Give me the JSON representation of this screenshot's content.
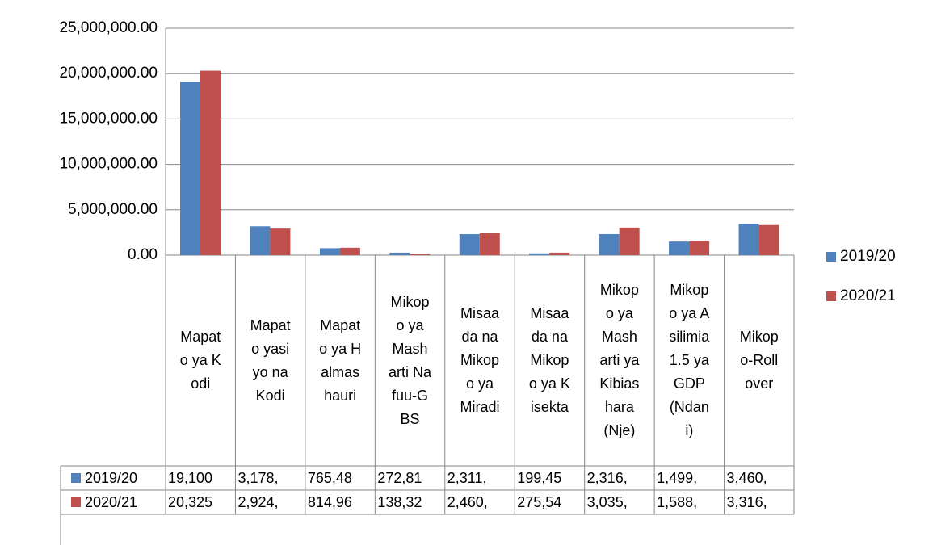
{
  "chart_data": {
    "type": "bar",
    "categories": [
      "Mapato ya Kodi",
      "Mapato yasiyo na Kodi",
      "Mapato ya Halmashauri",
      "Mikopo ya Masharti Nafuu-GBS",
      "Misaada na Mikopo ya Miradi",
      "Misaada na Mikopo ya Kisekta",
      "Mikopo ya Masharti ya Kibiashara (Nje)",
      "Mikopo ya Asilimia 1.5 ya GDP (Ndani)",
      "Mikopo-Rollover"
    ],
    "series": [
      {
        "name": "2019/20",
        "color": "#4f81bd",
        "values": [
          19100000,
          3178000,
          765480,
          272810,
          2311000,
          199450,
          2316000,
          1499000,
          3460000
        ],
        "value_labels": [
          "19,100",
          "3,178,",
          "765,48",
          "272,81",
          "2,311,",
          "199,45",
          "2,316,",
          "1,499,",
          "3,460,"
        ]
      },
      {
        "name": "2020/21",
        "color": "#c0504d",
        "values": [
          20325000,
          2924000,
          814960,
          138320,
          2460000,
          275540,
          3035000,
          1588000,
          3316000
        ],
        "value_labels": [
          "20,325",
          "2,924,",
          "814,96",
          "138,32",
          "2,460,",
          "275,54",
          "3,035,",
          "1,588,",
          "3,316,"
        ]
      }
    ],
    "ylim": [
      0,
      25000000
    ],
    "yticks": [
      {
        "value": 0,
        "label": "0.00"
      },
      {
        "value": 5000000,
        "label": "5,000,000.00"
      },
      {
        "value": 10000000,
        "label": "10,000,000.00"
      },
      {
        "value": 15000000,
        "label": "15,000,000.00"
      },
      {
        "value": 20000000,
        "label": "20,000,000.00"
      },
      {
        "value": 25000000,
        "label": "25,000,000.00"
      }
    ],
    "grid": true,
    "legend": "right",
    "data_table": true
  }
}
